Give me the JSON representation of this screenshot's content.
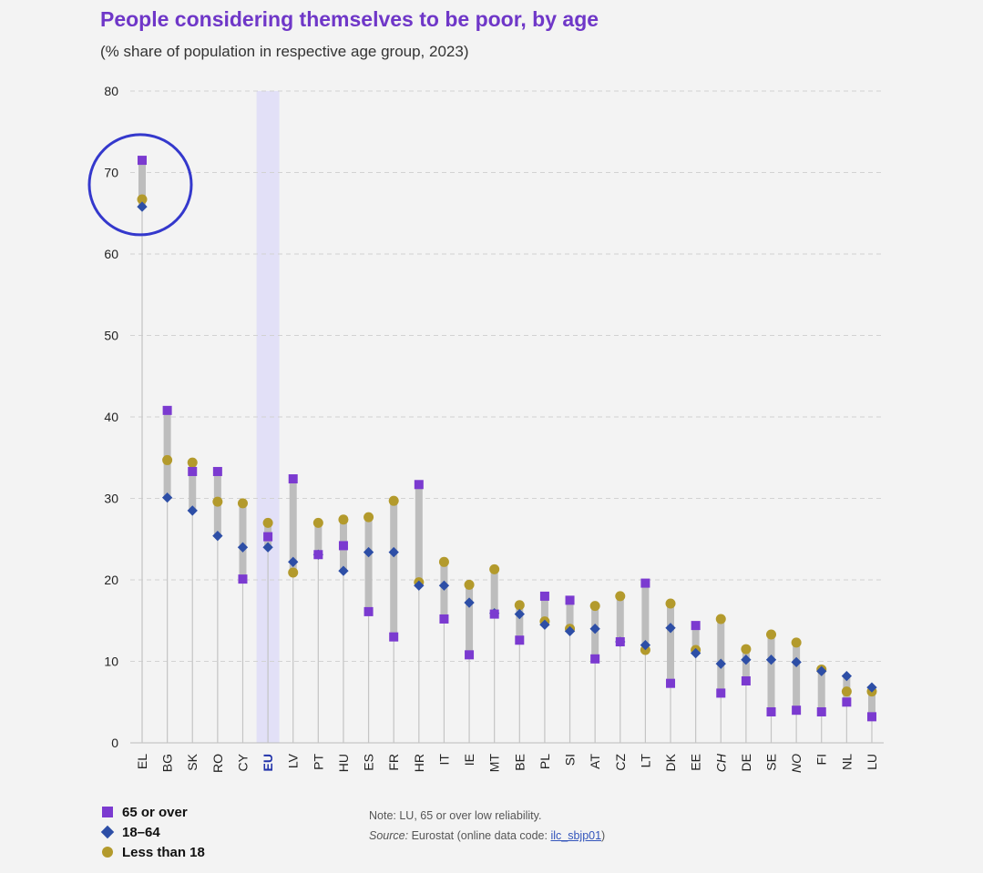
{
  "title": "People considering themselves to be poor, by age",
  "subtitle": "(% share of population in respective age group, 2023)",
  "colors": {
    "s65": "#7b3ad0",
    "s1864": "#2d4ea6",
    "slt18": "#b39a2c",
    "title": "#6f37c8",
    "eu_band": "#e2e0f7",
    "annotation": "#3438cc"
  },
  "chart_data": {
    "type": "dot-range",
    "title": "People considering themselves to be poor, by age",
    "ylim": [
      0,
      80
    ],
    "yticks": [
      0,
      10,
      20,
      30,
      40,
      50,
      60,
      70,
      80
    ],
    "grid": true,
    "legend_position": "bottom-left",
    "highlight_category": "EU",
    "annotated_category": "EL",
    "italic_categories": [
      "CH",
      "NO"
    ],
    "categories": [
      "EL",
      "BG",
      "SK",
      "RO",
      "CY",
      "EU",
      "LV",
      "PT",
      "HU",
      "ES",
      "FR",
      "HR",
      "IT",
      "IE",
      "MT",
      "BE",
      "PL",
      "SI",
      "AT",
      "CZ",
      "LT",
      "DK",
      "EE",
      "CH",
      "DE",
      "SE",
      "NO",
      "FI",
      "NL",
      "LU"
    ],
    "series": [
      {
        "name": "65 or over",
        "marker": "square",
        "values": [
          71.5,
          40.8,
          33.3,
          33.3,
          20.1,
          25.3,
          32.4,
          23.1,
          24.2,
          16.1,
          13.0,
          31.7,
          15.2,
          10.8,
          15.8,
          12.6,
          18.0,
          17.5,
          10.3,
          12.4,
          19.6,
          7.3,
          14.4,
          6.1,
          7.6,
          3.8,
          4.0,
          3.8,
          5.0,
          3.2
        ]
      },
      {
        "name": "18–64",
        "marker": "diamond",
        "values": [
          65.8,
          30.1,
          28.5,
          25.4,
          24.0,
          24.0,
          22.2,
          23.1,
          21.1,
          23.4,
          23.4,
          19.3,
          19.3,
          17.2,
          15.9,
          15.8,
          14.5,
          13.7,
          14.0,
          12.4,
          12.0,
          14.1,
          11.0,
          9.7,
          10.2,
          10.2,
          9.9,
          8.8,
          8.2,
          6.8
        ]
      },
      {
        "name": "Less than 18",
        "marker": "circle",
        "values": [
          66.7,
          34.7,
          34.4,
          29.6,
          29.4,
          27.0,
          20.9,
          27.0,
          27.4,
          27.7,
          29.7,
          19.7,
          22.2,
          19.4,
          21.3,
          16.9,
          14.9,
          14.0,
          16.8,
          18.0,
          11.4,
          17.1,
          11.4,
          15.2,
          11.5,
          13.3,
          12.3,
          9.0,
          6.3,
          6.3
        ]
      }
    ]
  },
  "legend": [
    "65 or over",
    "18–64",
    "Less than 18"
  ],
  "note": "Note: LU, 65 or over low reliability.",
  "source_label": "Source:",
  "source_text": " Eurostat (online data code: ",
  "source_link": "ilc_sbjp01",
  "source_close": ")"
}
